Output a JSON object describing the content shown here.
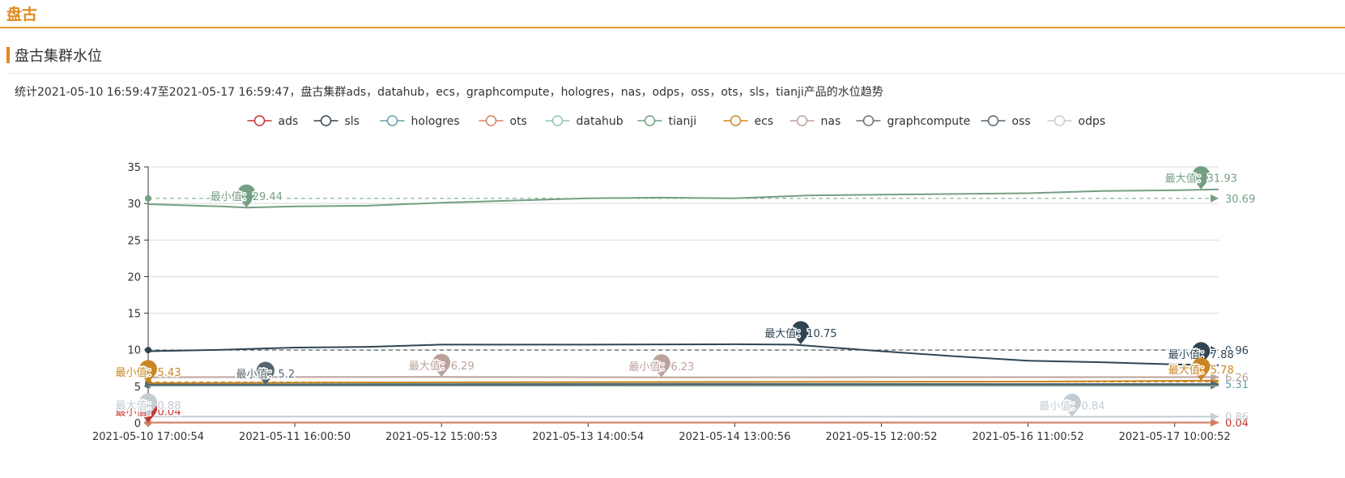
{
  "header": {
    "brand": "盘古"
  },
  "section": {
    "title": "盘古集群水位",
    "description": "统计2021-05-10 16:59:47至2021-05-17 16:59:47，盘古集群ads，datahub，ecs，graphcompute，hologres，nas，odps，oss，ots，sls，tianji产品的水位趋势"
  },
  "chart_data": {
    "type": "line",
    "ylim": [
      0,
      35
    ],
    "yticks": [
      0,
      5,
      10,
      15,
      20,
      25,
      30,
      35
    ],
    "grid": true,
    "legend_position": "top-center",
    "x_labels": [
      "2021-05-10 17:00:54",
      "2021-05-11 16:00:50",
      "2021-05-12 15:00:53",
      "2021-05-13 14:00:54",
      "2021-05-14 13:00:56",
      "2021-05-15 12:00:52",
      "2021-05-16 11:00:52",
      "2021-05-17 10:00:52"
    ],
    "markers": {
      "max_prefix": "最大值：",
      "min_prefix": "最小值："
    },
    "series": [
      {
        "name": "ads",
        "color": "#c23531",
        "points": [
          [
            0,
            0.04
          ],
          [
            7.3,
            0.04
          ]
        ],
        "avg": 0.04,
        "avg_label": "0.04",
        "max": null,
        "min": {
          "x": 0,
          "v": 0.04,
          "label": "0.04"
        }
      },
      {
        "name": "sls",
        "color": "#2f4554",
        "points": [
          [
            0,
            9.8
          ],
          [
            0.5,
            10.0
          ],
          [
            1,
            10.3
          ],
          [
            1.5,
            10.4
          ],
          [
            2,
            10.7
          ],
          [
            3,
            10.7
          ],
          [
            4,
            10.75
          ],
          [
            4.4,
            10.7
          ],
          [
            5,
            9.8
          ],
          [
            5.5,
            9.1
          ],
          [
            6,
            8.5
          ],
          [
            6.5,
            8.3
          ],
          [
            7,
            8.0
          ],
          [
            7.3,
            7.88
          ]
        ],
        "avg": 9.96,
        "avg_label": "9.96",
        "max": {
          "x": 4.45,
          "v": 10.75,
          "label": "10.75"
        },
        "min": {
          "x": 7.18,
          "v": 7.88,
          "label": "7.88"
        }
      },
      {
        "name": "hologres",
        "color": "#61a0a8",
        "points": [
          [
            0,
            5.3
          ],
          [
            3,
            5.35
          ],
          [
            7.3,
            5.3
          ]
        ],
        "avg": 5.31,
        "avg_label": "5.31",
        "max": null,
        "min": null
      },
      {
        "name": "ots",
        "color": "#d48265",
        "points": [
          [
            0,
            0.05
          ],
          [
            7.3,
            0.05
          ]
        ],
        "avg": 0.05,
        "avg_label": "",
        "max": null,
        "min": null
      },
      {
        "name": "datahub",
        "color": "#91c7ae",
        "points": [
          [
            0,
            5.1
          ],
          [
            7.3,
            5.1
          ]
        ],
        "avg": 5.11,
        "avg_label": "",
        "max": null,
        "min": null
      },
      {
        "name": "tianji",
        "color": "#749f83",
        "points": [
          [
            0,
            29.9
          ],
          [
            0.5,
            29.6
          ],
          [
            0.67,
            29.44
          ],
          [
            1,
            29.6
          ],
          [
            1.5,
            29.7
          ],
          [
            2,
            30.1
          ],
          [
            2.5,
            30.4
          ],
          [
            3,
            30.7
          ],
          [
            3.5,
            30.8
          ],
          [
            4,
            30.7
          ],
          [
            4.5,
            31.1
          ],
          [
            5,
            31.2
          ],
          [
            5.5,
            31.3
          ],
          [
            6,
            31.4
          ],
          [
            6.5,
            31.7
          ],
          [
            7,
            31.8
          ],
          [
            7.3,
            31.93
          ]
        ],
        "avg": 30.69,
        "avg_label": "30.69",
        "max": {
          "x": 7.18,
          "v": 31.93,
          "label": "31.93"
        },
        "min": {
          "x": 0.67,
          "v": 29.44,
          "label": "29.44"
        }
      },
      {
        "name": "ecs",
        "color": "#ca8622",
        "points": [
          [
            0,
            5.43
          ],
          [
            2,
            5.55
          ],
          [
            4,
            5.6
          ],
          [
            6,
            5.65
          ],
          [
            7.3,
            5.78
          ]
        ],
        "avg": 5.6,
        "avg_label": "",
        "max": {
          "x": 7.18,
          "v": 5.78,
          "label": "5.78"
        },
        "min": {
          "x": 0,
          "v": 5.43,
          "label": "5.43"
        }
      },
      {
        "name": "nas",
        "color": "#bda29a",
        "points": [
          [
            0,
            6.25
          ],
          [
            2,
            6.29
          ],
          [
            3.5,
            6.23
          ],
          [
            5,
            6.26
          ],
          [
            7.3,
            6.26
          ]
        ],
        "avg": 6.26,
        "avg_label": "6.26",
        "max": {
          "x": 2.0,
          "v": 6.29,
          "label": "6.29"
        },
        "min": {
          "x": 3.5,
          "v": 6.23,
          "label": "6.23"
        }
      },
      {
        "name": "graphcompute",
        "color": "#6e7074",
        "points": [
          [
            0,
            5.2
          ],
          [
            7.3,
            5.2
          ]
        ],
        "avg": 5.2,
        "avg_label": "",
        "max": null,
        "min": null
      },
      {
        "name": "oss",
        "color": "#546570",
        "points": [
          [
            0,
            5.25
          ],
          [
            0.8,
            5.2
          ],
          [
            2,
            5.25
          ],
          [
            4,
            5.3
          ],
          [
            7.3,
            5.3
          ]
        ],
        "avg": 5.26,
        "avg_label": "",
        "max": null,
        "min": {
          "x": 0.8,
          "v": 5.2,
          "label": "5.2"
        }
      },
      {
        "name": "odps",
        "color": "#c4ccd3",
        "points": [
          [
            0,
            0.88
          ],
          [
            3,
            0.86
          ],
          [
            6.3,
            0.84
          ],
          [
            7.3,
            0.86
          ]
        ],
        "avg": 0.86,
        "avg_label": "0.86",
        "max": {
          "x": 0,
          "v": 0.88,
          "label": "0.88"
        },
        "min": {
          "x": 6.3,
          "v": 0.84,
          "label": "0.84"
        }
      }
    ]
  }
}
